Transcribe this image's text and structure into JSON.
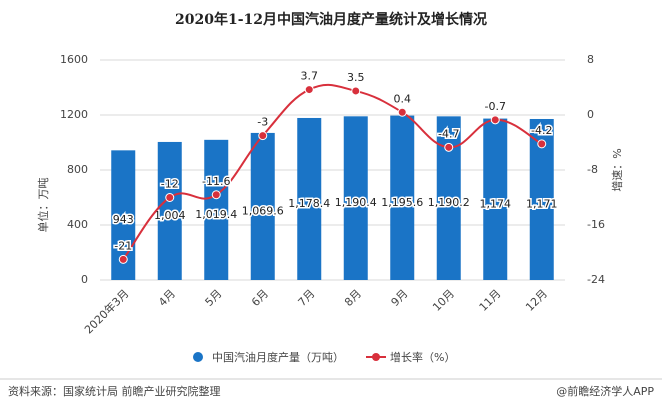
{
  "chart_data": {
    "type": "bar-line",
    "title": "2020年1-12月中国汽油月度产量统计及增长情况",
    "y_label": "单位：万吨",
    "y2_label": "增速：%",
    "categories": [
      "2020年3月",
      "4月",
      "5月",
      "6月",
      "7月",
      "8月",
      "9月",
      "10月",
      "11月",
      "12月"
    ],
    "series": [
      {
        "name": "中国汽油月度产量（万吨）",
        "color": "#1a74c6",
        "type": "bar",
        "values": [
          943,
          1004,
          1019.4,
          1069.6,
          1178.4,
          1190.4,
          1195.6,
          1190.2,
          1174,
          1171
        ],
        "value_labels": [
          "943",
          "1,004",
          "1,019.4",
          "1,069.6",
          "1,178.4",
          "1,190.4",
          "1,195.6",
          "1,190.2",
          "1,174",
          "1,171"
        ]
      },
      {
        "name": "增长率（%）",
        "color": "#d8303c",
        "type": "line",
        "axis": "y2",
        "values": [
          -21,
          -12,
          -11.6,
          -3,
          3.7,
          3.5,
          0.4,
          -4.7,
          -0.7,
          -4.2
        ]
      }
    ],
    "ylim": [
      0,
      1600
    ],
    "yticks": [
      0,
      400,
      800,
      1200,
      1600
    ],
    "y2lim": [
      -24,
      8
    ],
    "y2ticks": [
      -24,
      -16,
      -8,
      0,
      8
    ],
    "grid": true,
    "source": "资料来源：国家统计局 前瞻产业研究院整理",
    "credit": "@前瞻经济学人APP"
  }
}
